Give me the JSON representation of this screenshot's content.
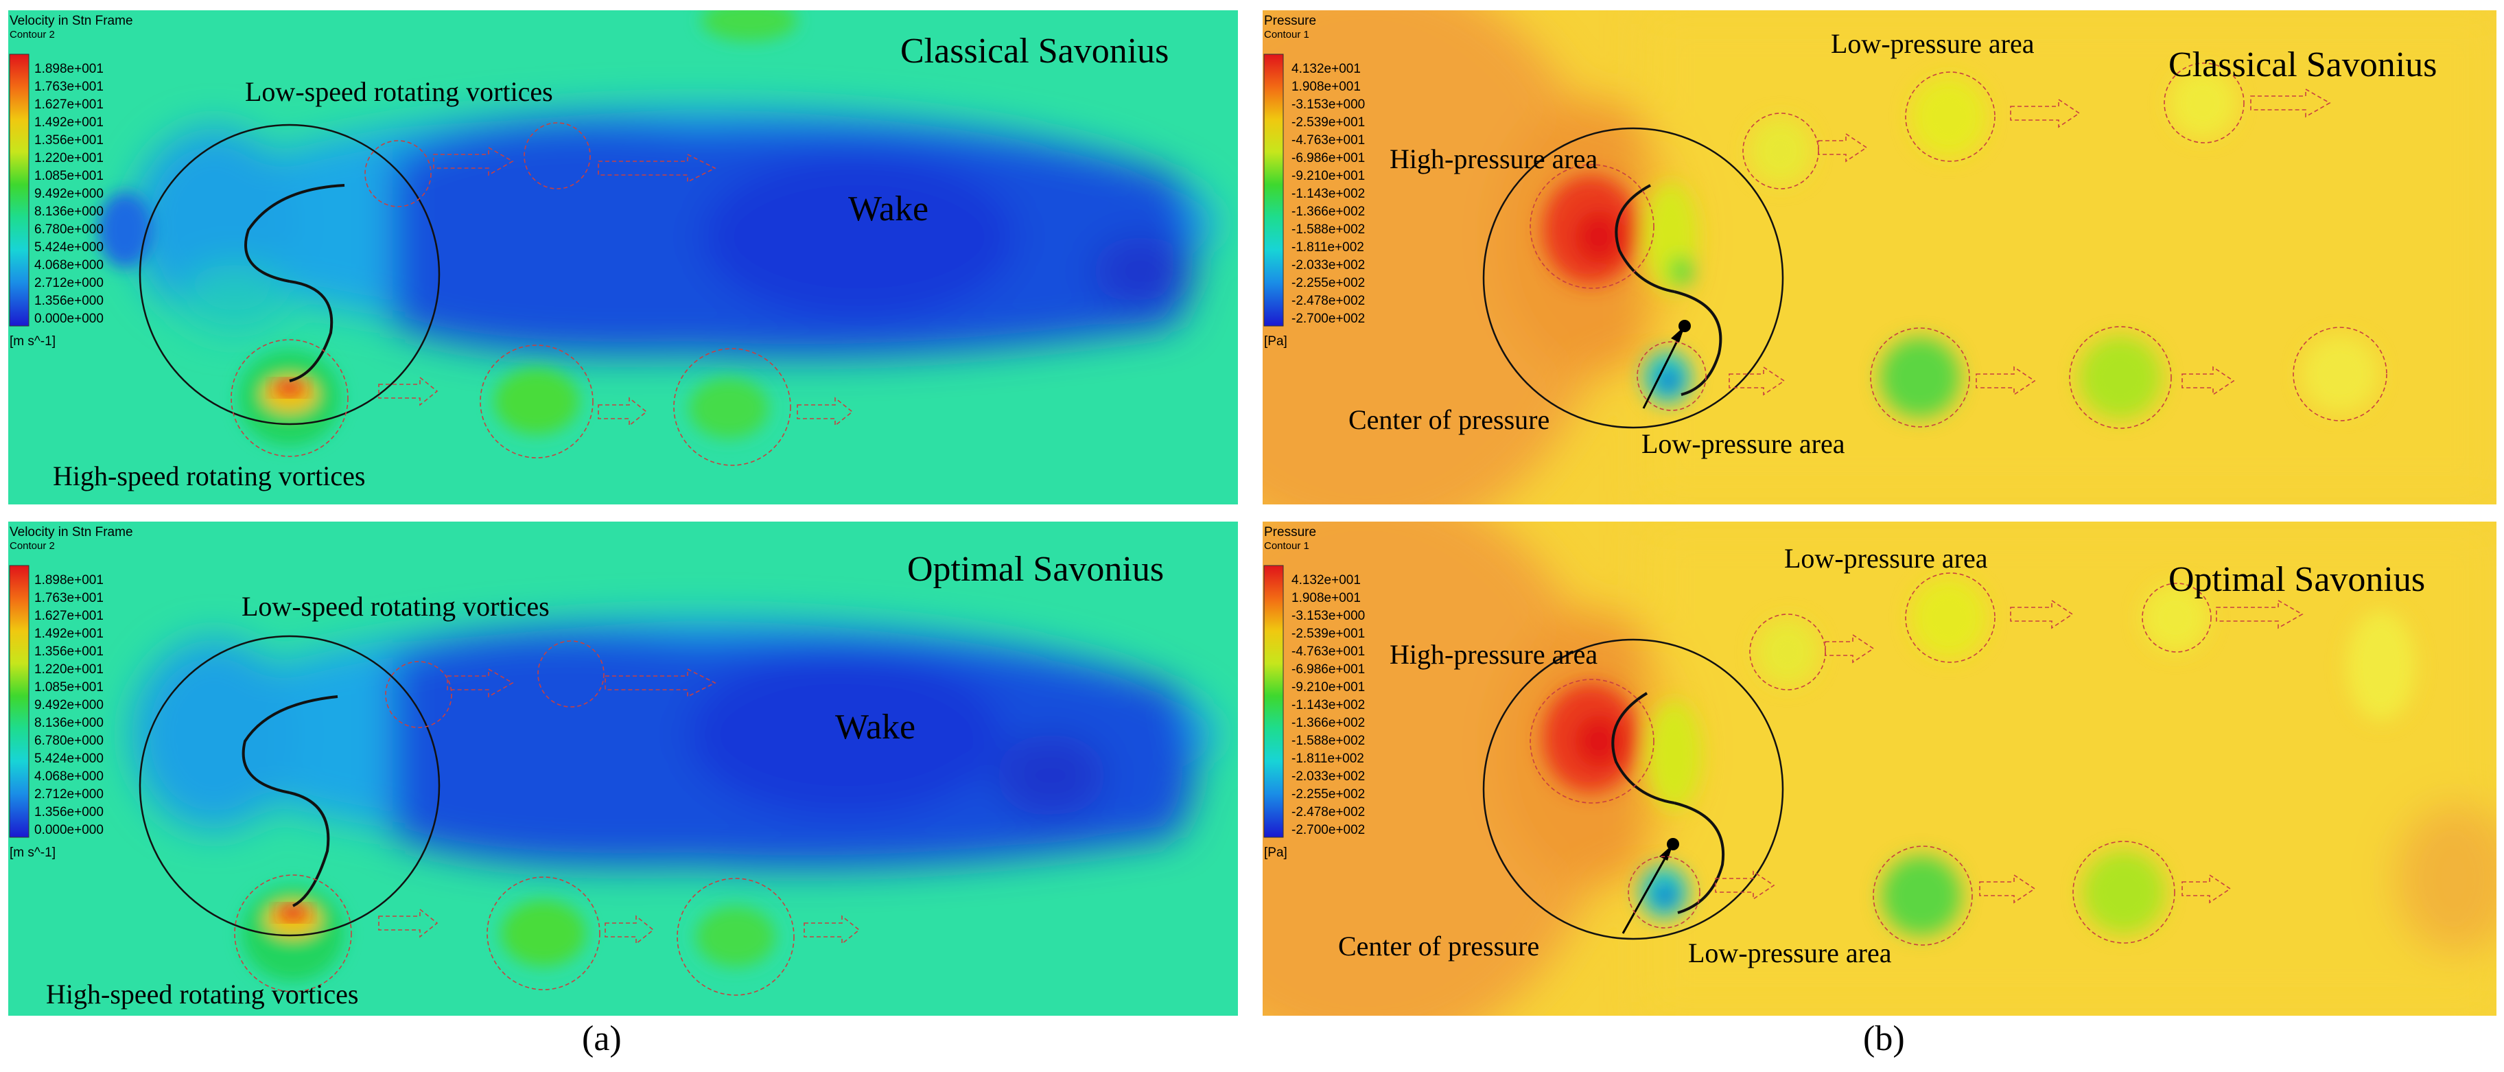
{
  "panels": [
    {
      "id": "a_top",
      "header_title": "Velocity in Stn Frame",
      "header_sub": "Contour 2",
      "colorbar_ticks": [
        "1.898e+001",
        "1.763e+001",
        "1.627e+001",
        "1.492e+001",
        "1.356e+001",
        "1.220e+001",
        "1.085e+001",
        "9.492e+000",
        "8.136e+000",
        "6.780e+000",
        "5.424e+000",
        "4.068e+000",
        "2.712e+000",
        "1.356e+000",
        "0.000e+000"
      ],
      "unit": "[m s^-1]",
      "corner_label": "Classical Savonius",
      "labels": [
        "Low-speed rotating vortices",
        "Wake",
        "High-speed rotating vortices"
      ]
    },
    {
      "id": "a_bottom",
      "header_title": "Velocity in Stn Frame",
      "header_sub": "Contour 2",
      "colorbar_ticks": [
        "1.898e+001",
        "1.763e+001",
        "1.627e+001",
        "1.492e+001",
        "1.356e+001",
        "1.220e+001",
        "1.085e+001",
        "9.492e+000",
        "8.136e+000",
        "6.780e+000",
        "5.424e+000",
        "4.068e+000",
        "2.712e+000",
        "1.356e+000",
        "0.000e+000"
      ],
      "unit": "[m s^-1]",
      "corner_label": "Optimal Savonius",
      "labels": [
        "Low-speed rotating vortices",
        "Wake",
        "High-speed rotating vortices"
      ]
    },
    {
      "id": "b_top",
      "header_title": "Pressure",
      "header_sub": "Contour 1",
      "colorbar_ticks": [
        "4.132e+001",
        "1.908e+001",
        "-3.153e+000",
        "-2.539e+001",
        "-4.763e+001",
        "-6.986e+001",
        "-9.210e+001",
        "-1.143e+002",
        "-1.366e+002",
        "-1.588e+002",
        "-1.811e+002",
        "-2.033e+002",
        "-2.255e+002",
        "-2.478e+002",
        "-2.700e+002"
      ],
      "unit": "[Pa]",
      "corner_label": "Classical Savonius",
      "labels": [
        "Low-pressure area",
        "High-pressure area",
        "Center of pressure",
        "Low-pressure area"
      ]
    },
    {
      "id": "b_bottom",
      "header_title": "Pressure",
      "header_sub": "Contour 1",
      "colorbar_ticks": [
        "4.132e+001",
        "1.908e+001",
        "-3.153e+000",
        "-2.539e+001",
        "-4.763e+001",
        "-6.986e+001",
        "-9.210e+001",
        "-1.143e+002",
        "-1.366e+002",
        "-1.588e+002",
        "-1.811e+002",
        "-2.033e+002",
        "-2.255e+002",
        "-2.478e+002",
        "-2.700e+002"
      ],
      "unit": "[Pa]",
      "corner_label": "Optimal Savonius",
      "labels": [
        "Low-pressure area",
        "High-pressure area",
        "Center of pressure",
        "Low-pressure area"
      ]
    }
  ],
  "captions": {
    "a": "(a)",
    "b": "(b)"
  }
}
